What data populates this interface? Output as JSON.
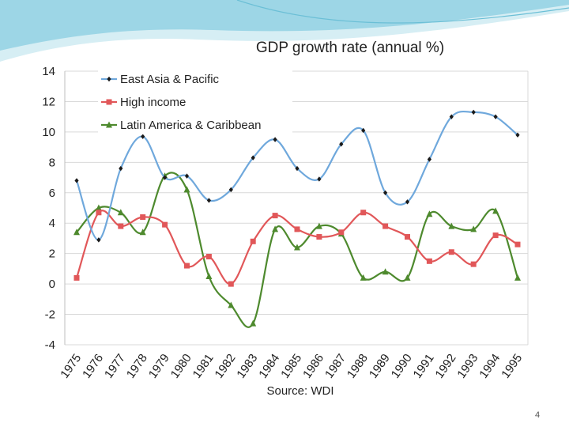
{
  "slide": {
    "page_number": "4",
    "source_note": "Source: WDI"
  },
  "colors": {
    "header_light": "#d6eef4",
    "header_mid": "#9dd6e6",
    "header_dark": "#6bbfd6",
    "grid": "#d9d9d9",
    "axis": "#bfbfbf",
    "marker": "#1a1a1a"
  },
  "chart_data": {
    "type": "line",
    "title": "GDP growth rate (annual %)",
    "xlabel": "",
    "ylabel": "",
    "ylim": [
      -4,
      14
    ],
    "yticks": [
      -4,
      -2,
      0,
      2,
      4,
      6,
      8,
      10,
      12,
      14
    ],
    "grid": true,
    "legend_position": "top-left",
    "categories": [
      "1975",
      "1976",
      "1977",
      "1978",
      "1979",
      "1980",
      "1981",
      "1982",
      "1983",
      "1984",
      "1985",
      "1986",
      "1987",
      "1988",
      "1989",
      "1990",
      "1991",
      "1992",
      "1993",
      "1994",
      "1995"
    ],
    "series": [
      {
        "name": "East Asia & Pacific",
        "color": "#6fa8dc",
        "marker": "diamond",
        "values": [
          6.8,
          2.9,
          7.6,
          9.7,
          7.0,
          7.1,
          5.5,
          6.2,
          8.3,
          9.5,
          7.6,
          6.9,
          9.2,
          10.1,
          6.0,
          5.4,
          8.2,
          11.0,
          11.3,
          11.0,
          9.8
        ]
      },
      {
        "name": "High income",
        "color": "#e15759",
        "marker": "square",
        "values": [
          0.4,
          4.7,
          3.8,
          4.4,
          3.9,
          1.2,
          1.8,
          0.0,
          2.8,
          4.5,
          3.6,
          3.1,
          3.4,
          4.7,
          3.8,
          3.1,
          1.5,
          2.1,
          1.3,
          3.2,
          2.6
        ]
      },
      {
        "name": "Latin America & Caribbean",
        "color": "#4e8a2e",
        "marker": "triangle",
        "values": [
          3.4,
          5.0,
          4.7,
          3.4,
          7.1,
          6.2,
          0.5,
          -1.4,
          -2.6,
          3.6,
          2.4,
          3.8,
          3.3,
          0.4,
          0.8,
          0.4,
          4.6,
          3.8,
          3.6,
          4.8,
          0.4
        ]
      }
    ]
  }
}
